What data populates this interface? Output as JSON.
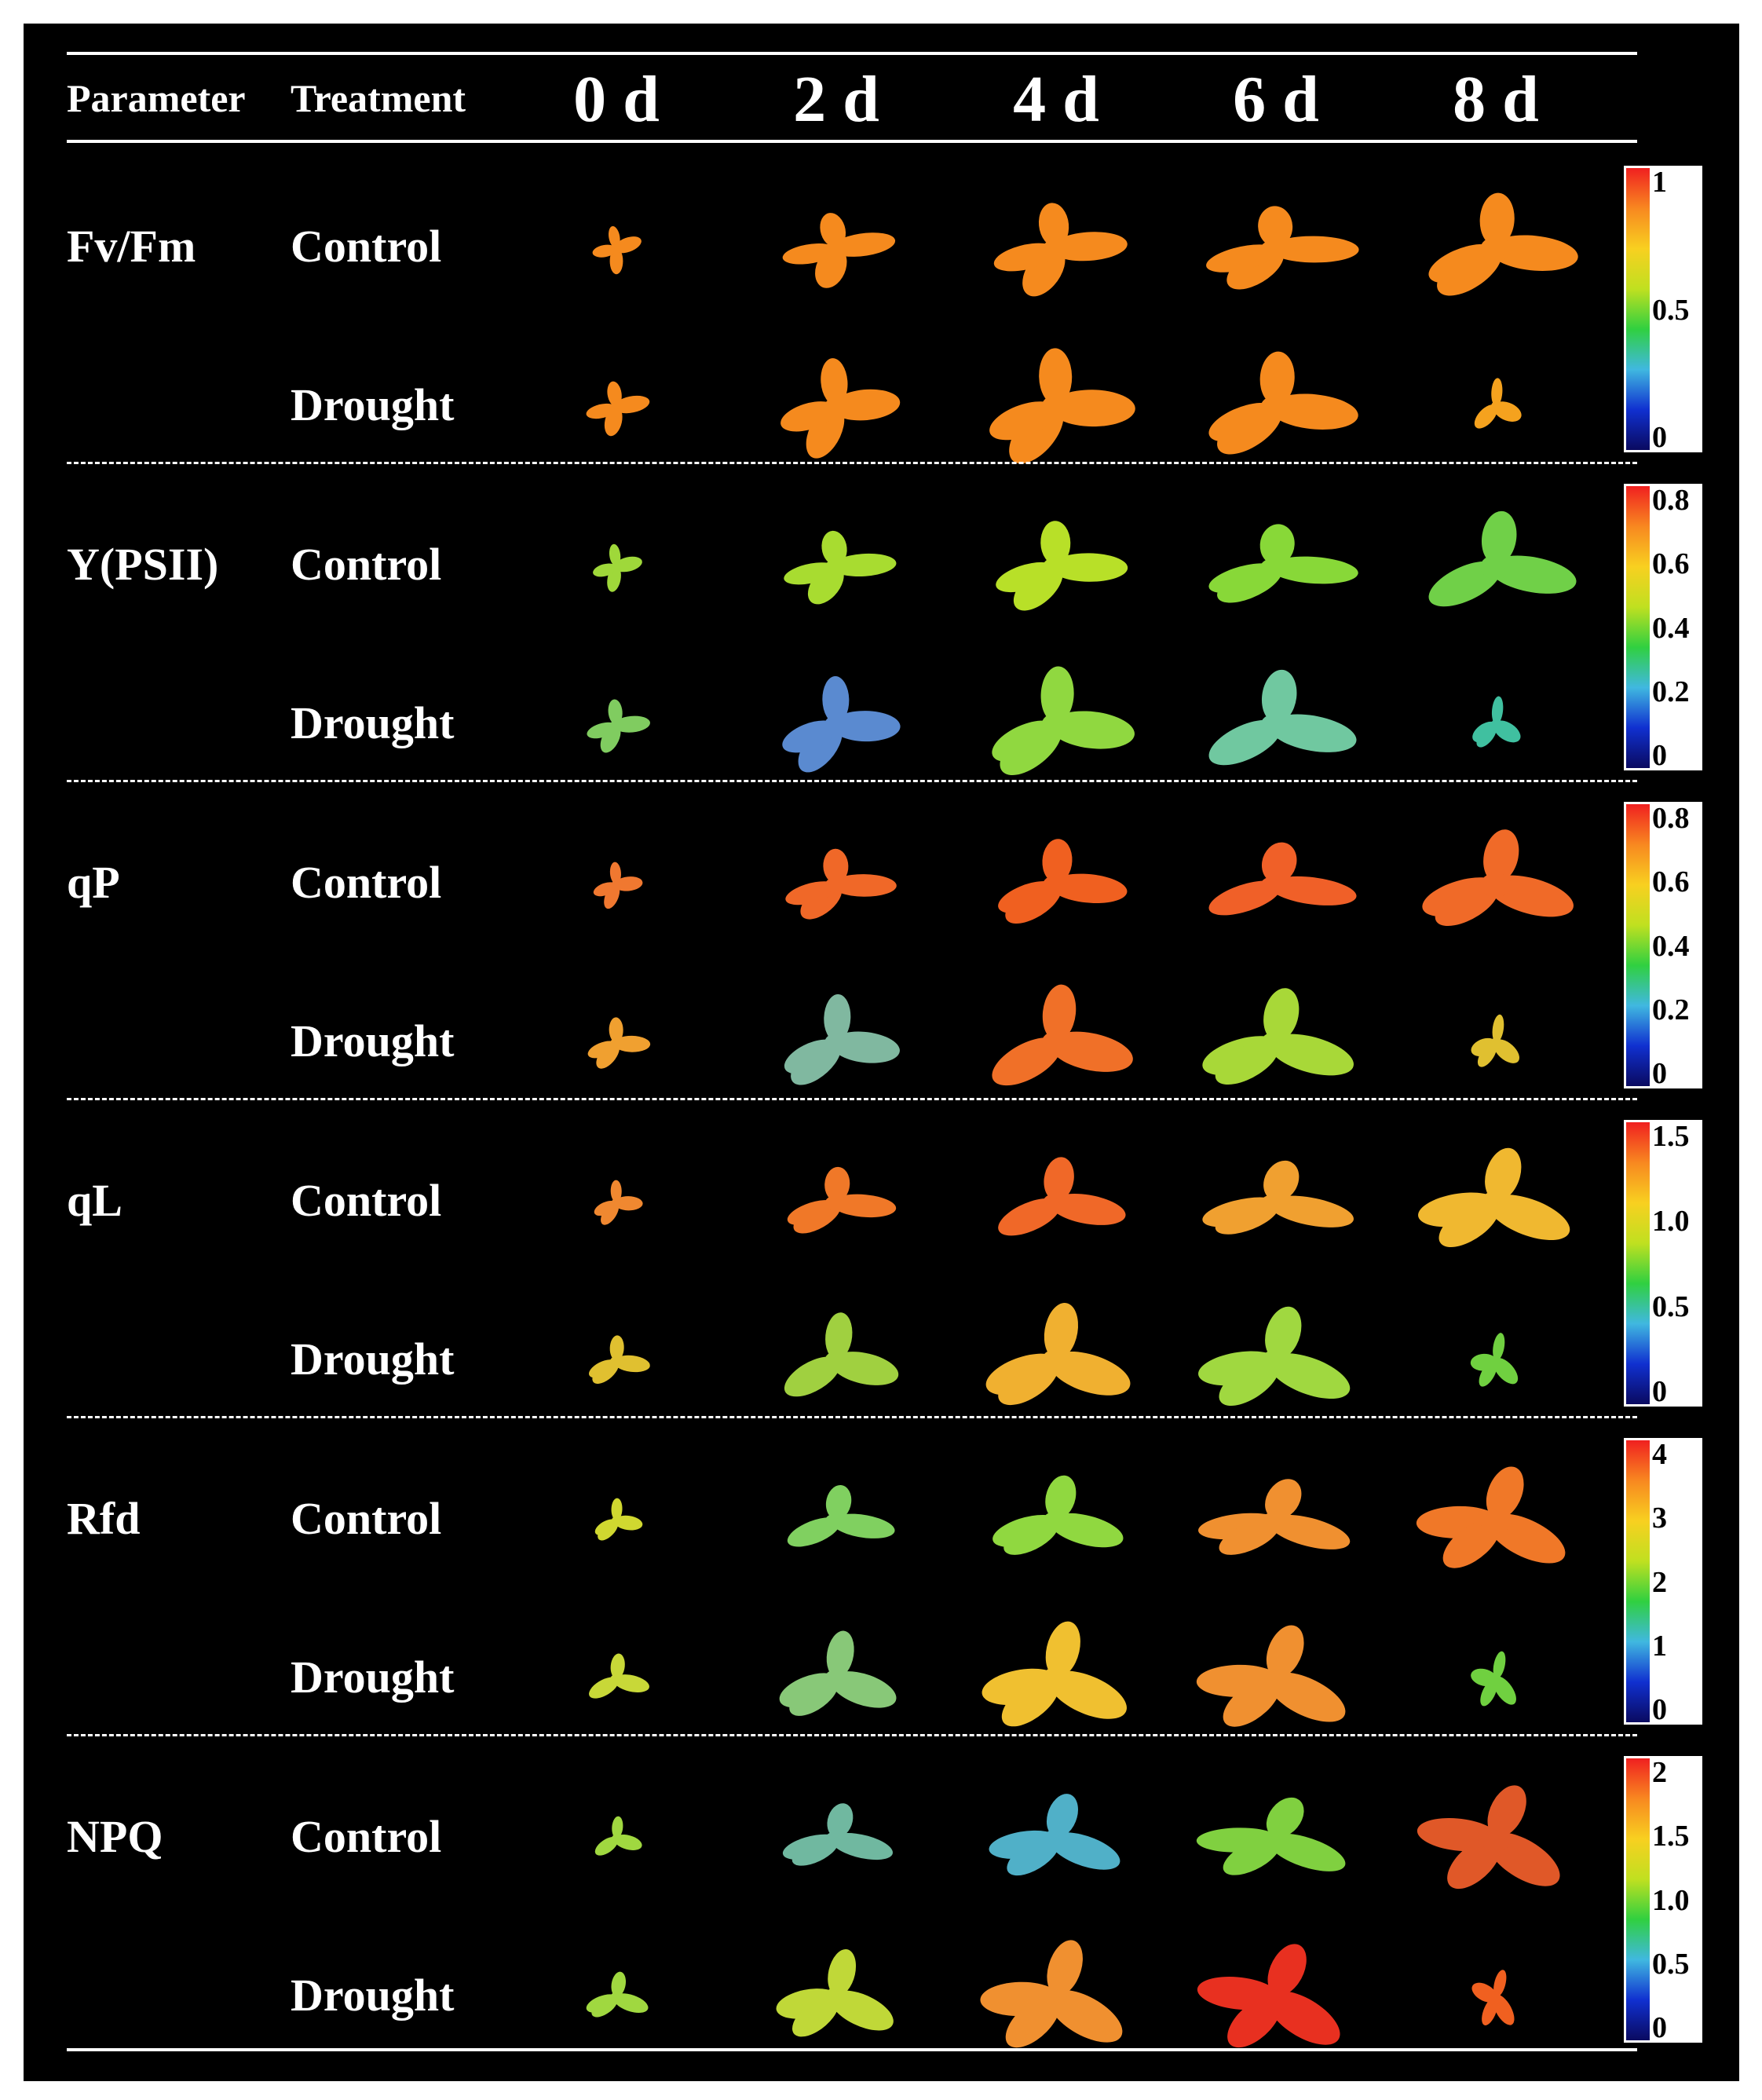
{
  "header": {
    "parameter_label": "Parameter",
    "treatment_label": "Treatment",
    "days": [
      "0 d",
      "2 d",
      "4 d",
      "6 d",
      "8 d"
    ]
  },
  "colors": {
    "background": "#000000",
    "text": "#ffffff",
    "colormap": [
      "#0a0a60",
      "#1030d0",
      "#40b8e0",
      "#30d040",
      "#c0e020",
      "#f8d020",
      "#f88820",
      "#f02020"
    ]
  },
  "panels": [
    {
      "parameter": "Fv/Fm",
      "scale_ticks": [
        "1",
        "0.5",
        "0"
      ],
      "rows": [
        {
          "treatment": "Control",
          "fills": [
            "#f58a1e",
            "#f58a1e",
            "#f58a1e",
            "#f58a1e",
            "#f58a1e"
          ]
        },
        {
          "treatment": "Drought",
          "fills": [
            "#f58a1e",
            "#f58a1e",
            "#f58a1e",
            "#f58a1e",
            "#f5a21e"
          ]
        }
      ]
    },
    {
      "parameter": "Y(PSII)",
      "scale_ticks": [
        "0.8",
        "0.6",
        "0.4",
        "0.2",
        "0"
      ],
      "rows": [
        {
          "treatment": "Control",
          "fills": [
            "#9fd83a",
            "#a8dc30",
            "#b8e028",
            "#88d838",
            "#70d048"
          ]
        },
        {
          "treatment": "Drought",
          "fills": [
            "#80cc60",
            "#5a8ad0",
            "#90d840",
            "#70c8a0",
            "#40c0a0"
          ]
        }
      ]
    },
    {
      "parameter": "qP",
      "scale_ticks": [
        "0.8",
        "0.6",
        "0.4",
        "0.2",
        "0"
      ],
      "rows": [
        {
          "treatment": "Control",
          "fills": [
            "#f07830",
            "#f06828",
            "#f06020",
            "#f06028",
            "#f06a28"
          ]
        },
        {
          "treatment": "Drought",
          "fills": [
            "#f0a030",
            "#80b8a0",
            "#f07028",
            "#a8d838",
            "#e0c030"
          ]
        }
      ]
    },
    {
      "parameter": "qL",
      "scale_ticks": [
        "1.5",
        "1.0",
        "0.5",
        "0"
      ],
      "rows": [
        {
          "treatment": "Control",
          "fills": [
            "#f08830",
            "#f07828",
            "#f06828",
            "#f0a030",
            "#f0b830"
          ]
        },
        {
          "treatment": "Drought",
          "fills": [
            "#e0c030",
            "#a0d040",
            "#f0b030",
            "#a0d840",
            "#70d040"
          ]
        }
      ]
    },
    {
      "parameter": "Rfd",
      "scale_ticks": [
        "4",
        "3",
        "2",
        "1",
        "0"
      ],
      "rows": [
        {
          "treatment": "Control",
          "fills": [
            "#d0d830",
            "#80d060",
            "#90d840",
            "#f09030",
            "#f07828"
          ]
        },
        {
          "treatment": "Drought",
          "fills": [
            "#c8d838",
            "#88c878",
            "#f0c030",
            "#f09030",
            "#70d040"
          ]
        }
      ]
    },
    {
      "parameter": "NPQ",
      "scale_ticks": [
        "2",
        "1.5",
        "1.0",
        "0.5",
        "0"
      ],
      "rows": [
        {
          "treatment": "Control",
          "fills": [
            "#a0d840",
            "#70b8a0",
            "#50b0c8",
            "#80d040",
            "#e05828"
          ]
        },
        {
          "treatment": "Drought",
          "fills": [
            "#a0d840",
            "#c0d838",
            "#f09030",
            "#e83020",
            "#f06020"
          ]
        }
      ]
    }
  ]
}
